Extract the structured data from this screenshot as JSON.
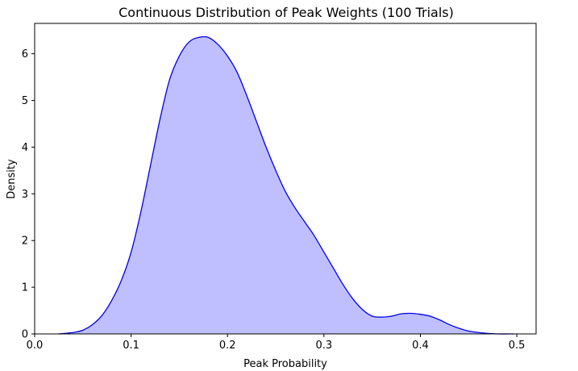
{
  "chart_data": {
    "type": "area",
    "title": "Continuous Distribution of Peak Weights (100 Trials)",
    "xlabel": "Peak Probability",
    "ylabel": "Density",
    "xlim": [
      0.0,
      0.52
    ],
    "ylim": [
      0,
      6.65
    ],
    "xticks": [
      0.0,
      0.1,
      0.2,
      0.3,
      0.4,
      0.5
    ],
    "xtick_labels": [
      "0.0",
      "0.1",
      "0.2",
      "0.3",
      "0.4",
      "0.5"
    ],
    "yticks": [
      0,
      1,
      2,
      3,
      4,
      5,
      6
    ],
    "ytick_labels": [
      "0",
      "1",
      "2",
      "3",
      "4",
      "5",
      "6"
    ],
    "grid": false,
    "legend": "none",
    "colors": {
      "line": "#0000ee",
      "fill": "#bfbfff"
    },
    "series": [
      {
        "x": [
          0.025,
          0.04,
          0.05,
          0.06,
          0.07,
          0.08,
          0.09,
          0.1,
          0.11,
          0.12,
          0.13,
          0.14,
          0.15,
          0.16,
          0.17,
          0.18,
          0.19,
          0.2,
          0.21,
          0.22,
          0.23,
          0.24,
          0.25,
          0.26,
          0.27,
          0.28,
          0.29,
          0.3,
          0.31,
          0.32,
          0.33,
          0.34,
          0.35,
          0.36,
          0.37,
          0.38,
          0.39,
          0.4,
          0.41,
          0.42,
          0.43,
          0.44,
          0.45,
          0.46,
          0.47,
          0.48,
          0.497
        ],
        "y": [
          0.0,
          0.03,
          0.08,
          0.2,
          0.4,
          0.72,
          1.15,
          1.75,
          2.6,
          3.6,
          4.6,
          5.45,
          5.95,
          6.25,
          6.35,
          6.35,
          6.2,
          5.95,
          5.6,
          5.1,
          4.55,
          4.0,
          3.5,
          3.05,
          2.7,
          2.4,
          2.1,
          1.75,
          1.4,
          1.05,
          0.75,
          0.52,
          0.38,
          0.36,
          0.38,
          0.43,
          0.44,
          0.42,
          0.38,
          0.3,
          0.2,
          0.12,
          0.06,
          0.03,
          0.01,
          0.0,
          0.0
        ]
      }
    ]
  }
}
